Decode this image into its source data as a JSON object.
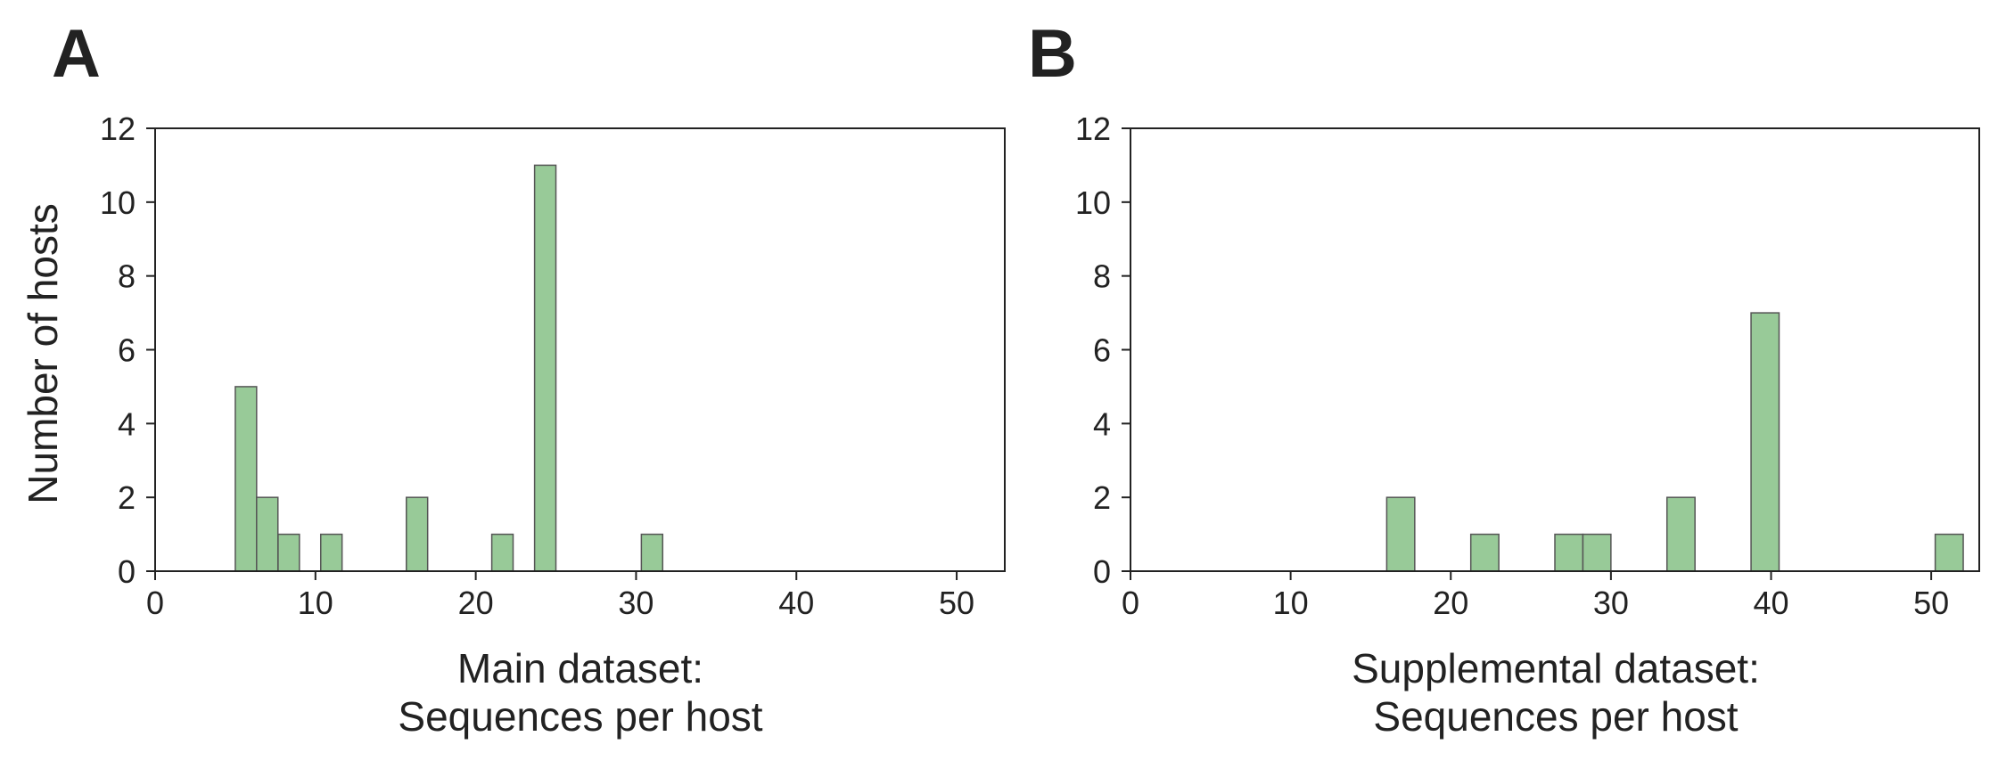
{
  "chart_data": [
    {
      "panel": "A",
      "type": "bar",
      "xlabel": [
        "Main dataset:",
        "Sequences per host"
      ],
      "ylabel": "Number of hosts",
      "xlim": [
        0,
        53
      ],
      "ylim": [
        0,
        12
      ],
      "xticks": [
        0,
        10,
        20,
        30,
        40,
        50
      ],
      "yticks": [
        0,
        2,
        4,
        6,
        8,
        10,
        12
      ],
      "bin_width": 1.33,
      "bins": [
        {
          "x": 5.0,
          "count": 5
        },
        {
          "x": 6.33,
          "count": 2
        },
        {
          "x": 7.67,
          "count": 1
        },
        {
          "x": 10.33,
          "count": 1
        },
        {
          "x": 15.67,
          "count": 2
        },
        {
          "x": 21.0,
          "count": 1
        },
        {
          "x": 23.67,
          "count": 11
        },
        {
          "x": 30.33,
          "count": 1
        }
      ]
    },
    {
      "panel": "B",
      "type": "bar",
      "xlabel": [
        "Supplemental dataset:",
        "Sequences per host"
      ],
      "ylabel": "",
      "xlim": [
        0,
        53
      ],
      "ylim": [
        0,
        12
      ],
      "xticks": [
        0,
        10,
        20,
        30,
        40,
        50
      ],
      "yticks": [
        0,
        2,
        4,
        6,
        8,
        10,
        12
      ],
      "bin_width": 1.75,
      "bins": [
        {
          "x": 16.0,
          "count": 2
        },
        {
          "x": 21.25,
          "count": 1
        },
        {
          "x": 26.5,
          "count": 1
        },
        {
          "x": 28.25,
          "count": 1
        },
        {
          "x": 33.5,
          "count": 2
        },
        {
          "x": 38.75,
          "count": 7
        },
        {
          "x": 50.25,
          "count": 1
        }
      ]
    }
  ]
}
